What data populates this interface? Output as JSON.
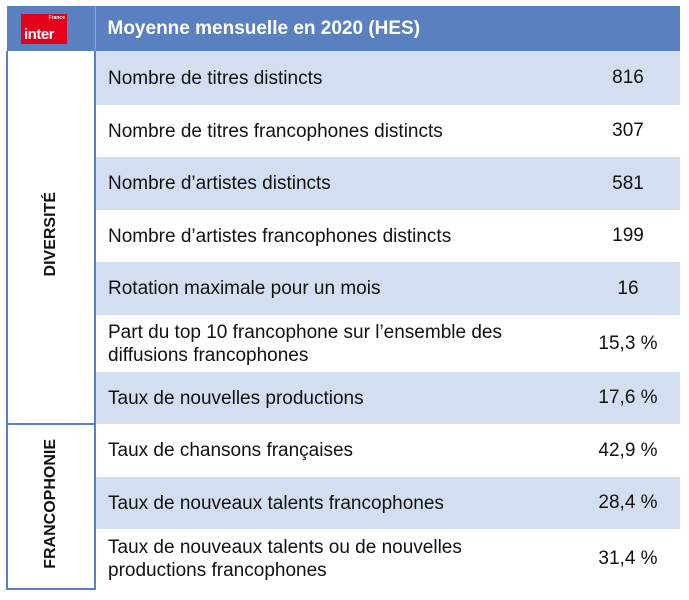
{
  "logo": {
    "small": "France",
    "name": "inter"
  },
  "header": {
    "title": "Moyenne mensuelle en 2020 (HES)"
  },
  "sections": [
    {
      "label": "DIVERSITÉ",
      "rows": [
        [
          "Nombre de titres distincts",
          "816"
        ],
        [
          "Nombre de titres francophones distincts",
          "307"
        ],
        [
          "Nombre d’artistes distincts",
          "581"
        ],
        [
          "Nombre d’artistes francophones distincts",
          "199"
        ],
        [
          "Rotation maximale pour un mois",
          "16"
        ],
        [
          "Part du top 10 francophone sur l’ensemble des diffusions francophones",
          "15,3 %"
        ],
        [
          "Taux de nouvelles productions",
          "17,6 %"
        ]
      ]
    },
    {
      "label": "FRANCOPHONIE",
      "rows": [
        [
          "Taux de chansons françaises",
          "42,9 %"
        ],
        [
          "Taux de nouveaux talents francophones",
          "28,4 %"
        ],
        [
          "Taux de nouveaux talents ou de nouvelles productions francophones",
          "31,4 %"
        ]
      ]
    }
  ]
}
